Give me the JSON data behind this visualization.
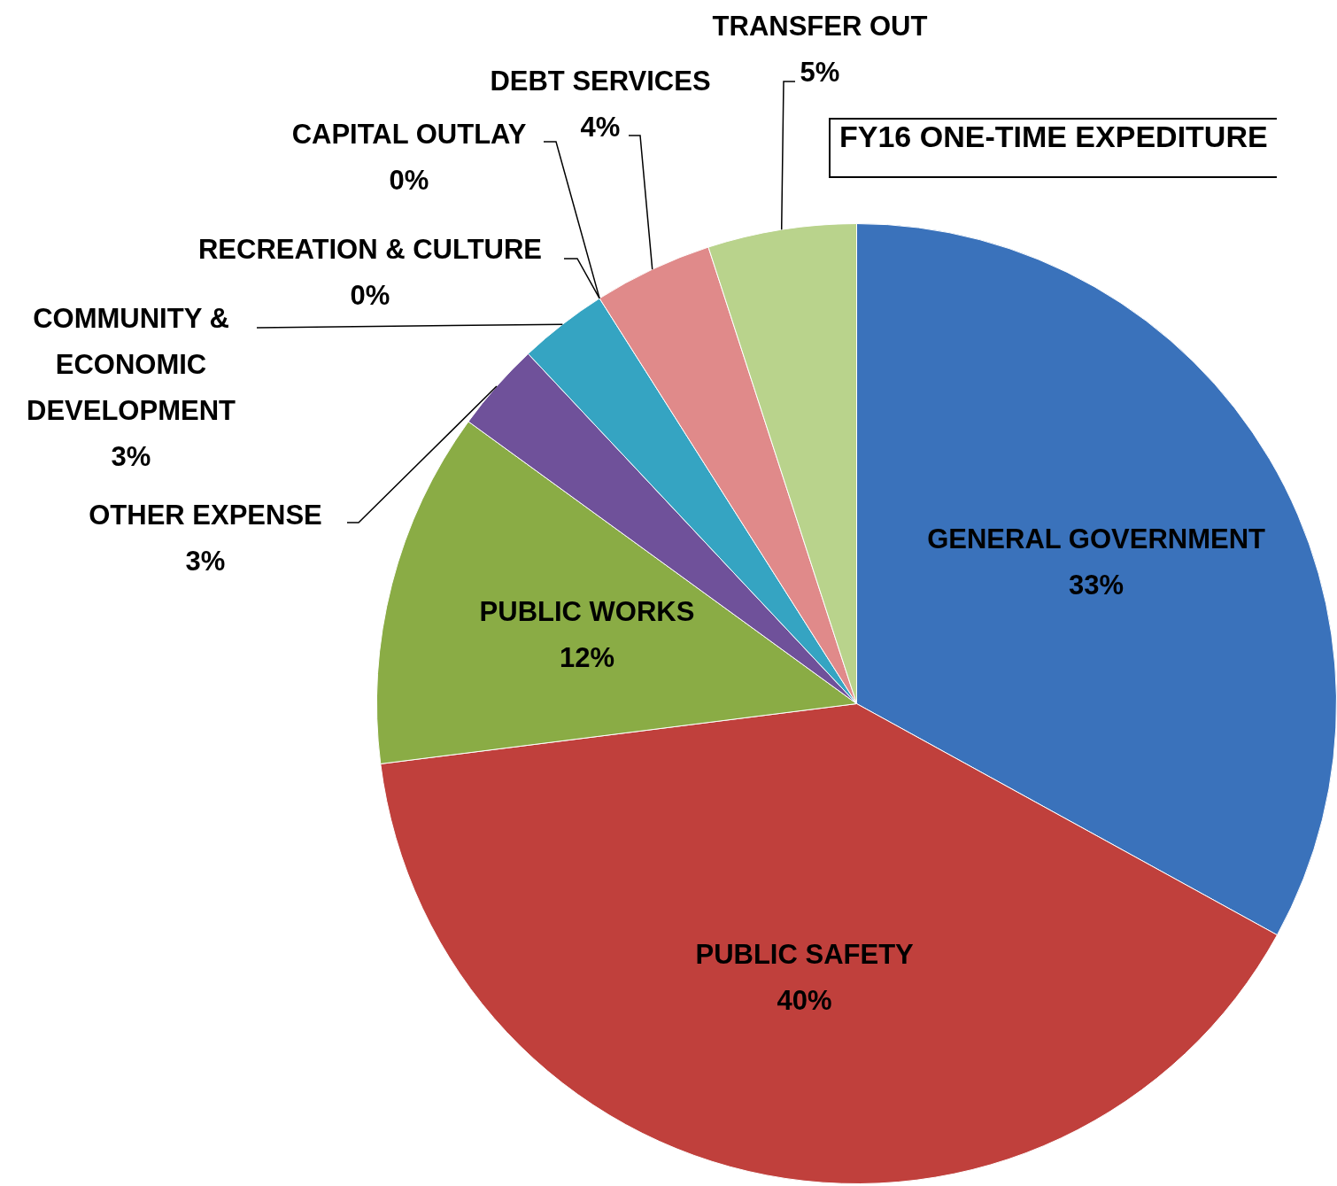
{
  "chart_data": {
    "type": "pie",
    "title": "FY16 ONE-TIME EXPEDITURE",
    "categories": [
      "GENERAL GOVERNMENT",
      "PUBLIC SAFETY",
      "PUBLIC WORKS",
      "OTHER EXPENSE",
      "COMMUNITY & ECONOMIC DEVELOPMENT",
      "RECREATION & CULTURE",
      "CAPITAL OUTLAY",
      "DEBT SERVICES",
      "TRANSFER OUT"
    ],
    "values": [
      33,
      40,
      12,
      3,
      3,
      0,
      0,
      4,
      5
    ],
    "colors": [
      "#3a72bb",
      "#c0403c",
      "#8aac45",
      "#6f519a",
      "#35a4c2",
      "#f79646",
      "#2c4d75",
      "#e08a8a",
      "#b9d38c"
    ],
    "value_labels": [
      "33%",
      "40%",
      "12%",
      "3%",
      "3%",
      "0%",
      "0%",
      "4%",
      "5%"
    ],
    "legend": false
  }
}
